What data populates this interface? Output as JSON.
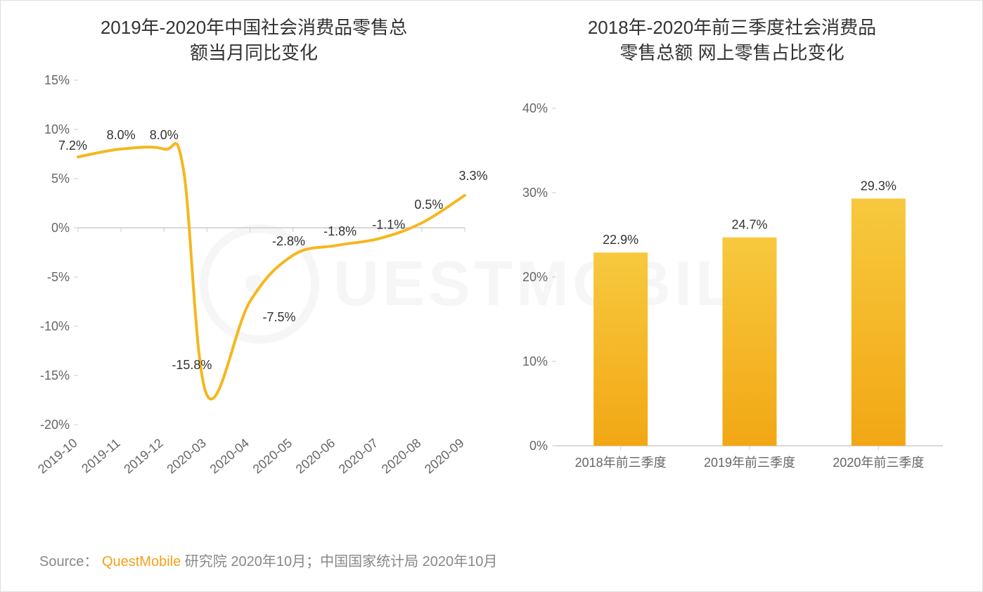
{
  "watermark_text": "UESTMOBILE",
  "line_chart": {
    "type": "line",
    "title_line1": "2019年-2020年中国社会消费品零售总",
    "title_line2": "额当月同比变化",
    "title_fontsize": 26,
    "categories": [
      "2019-10",
      "2019-11",
      "2019-12",
      "2020-03",
      "2020-04",
      "2020-05",
      "2020-06",
      "2020-07",
      "2020-08",
      "2020-09"
    ],
    "values": [
      7.2,
      8.0,
      8.0,
      -15.8,
      -7.5,
      -2.8,
      -1.8,
      -1.1,
      0.5,
      3.3
    ],
    "value_labels": [
      "7.2%",
      "8.0%",
      "8.0%",
      "-15.8%",
      "-7.5%",
      "-2.8%",
      "-1.8%",
      "-1.1%",
      "0.5%",
      "3.3%"
    ],
    "ylim": [
      -20,
      15
    ],
    "ytick_step": 5,
    "yticks": [
      -20,
      -15,
      -10,
      -5,
      0,
      5,
      10,
      15
    ],
    "ytick_labels": [
      "-20%",
      "-15%",
      "-10%",
      "-5%",
      "0%",
      "5%",
      "10%",
      "15%"
    ],
    "line_color": "#f5b71e",
    "line_width": 4,
    "axis_color": "#cccccc",
    "label_fontsize": 18,
    "tick_fontsize": 18,
    "background_color": "#ffffff",
    "x_label_rotation": -40,
    "curve_actual_min": -17.0
  },
  "bar_chart": {
    "type": "bar",
    "title_line1": "2018年-2020年前三季度社会消费品",
    "title_line2": "零售总额 网上零售占比变化",
    "title_fontsize": 26,
    "categories": [
      "2018年前三季度",
      "2019年前三季度",
      "2020年前三季度"
    ],
    "values": [
      22.9,
      24.7,
      29.3
    ],
    "value_labels": [
      "22.9%",
      "24.7%",
      "29.3%"
    ],
    "ylim": [
      0,
      40
    ],
    "ytick_step": 10,
    "yticks": [
      0,
      10,
      20,
      30,
      40
    ],
    "ytick_labels": [
      "0%",
      "10%",
      "20%",
      "30%",
      "40%"
    ],
    "bar_gradient_top": "#f7c93e",
    "bar_gradient_bottom": "#f2a714",
    "bar_width_ratio": 0.42,
    "axis_color": "#cccccc",
    "label_fontsize": 18,
    "tick_fontsize": 18,
    "background_color": "#ffffff"
  },
  "source": {
    "prefix": "Source：",
    "brand": "QuestMobile",
    "rest": " 研究院 2020年10月；中国国家统计局 2020年10月",
    "fontsize": 20,
    "text_color": "#888888",
    "brand_color": "#f5a11a"
  }
}
